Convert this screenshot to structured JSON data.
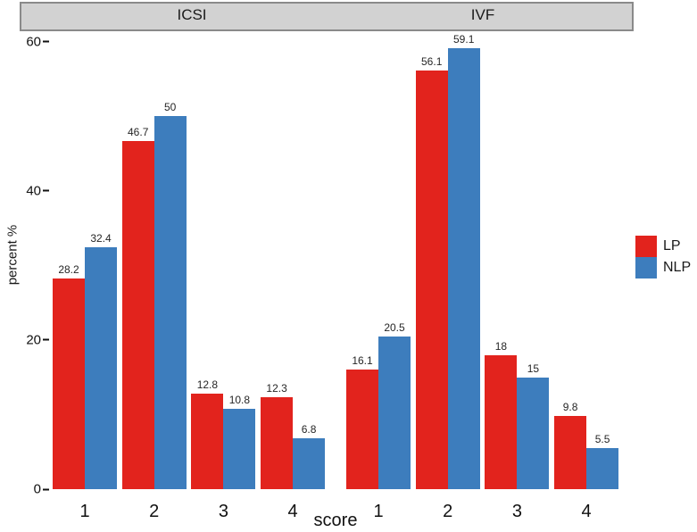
{
  "chart_data": {
    "type": "bar",
    "title": "",
    "xlabel": "score",
    "ylabel": "percent %",
    "ylim": [
      0,
      60
    ],
    "yticks": [
      0,
      20,
      40,
      60
    ],
    "grid": false,
    "facets": [
      {
        "label": "ICSI",
        "categories": [
          "1",
          "2",
          "3",
          "4"
        ],
        "series": [
          {
            "name": "LP",
            "values": [
              28.2,
              46.7,
              12.8,
              12.3
            ]
          },
          {
            "name": "NLP",
            "values": [
              32.4,
              50,
              10.8,
              6.8
            ]
          }
        ]
      },
      {
        "label": "IVF",
        "categories": [
          "1",
          "2",
          "3",
          "4"
        ],
        "series": [
          {
            "name": "LP",
            "values": [
              16.1,
              56.1,
              18,
              9.8
            ]
          },
          {
            "name": "NLP",
            "values": [
              20.5,
              59.1,
              15,
              5.5
            ]
          }
        ]
      }
    ],
    "legend": {
      "position": "right",
      "entries": [
        {
          "label": "LP",
          "color": "#e2231d"
        },
        {
          "label": "NLP",
          "color": "#3d7dbd"
        }
      ]
    }
  },
  "colors": {
    "facet_strip_fill": "#d2d2d2",
    "facet_strip_border": "#8a8a8a",
    "background": "#ffffff",
    "text": "#1a1a1a"
  }
}
